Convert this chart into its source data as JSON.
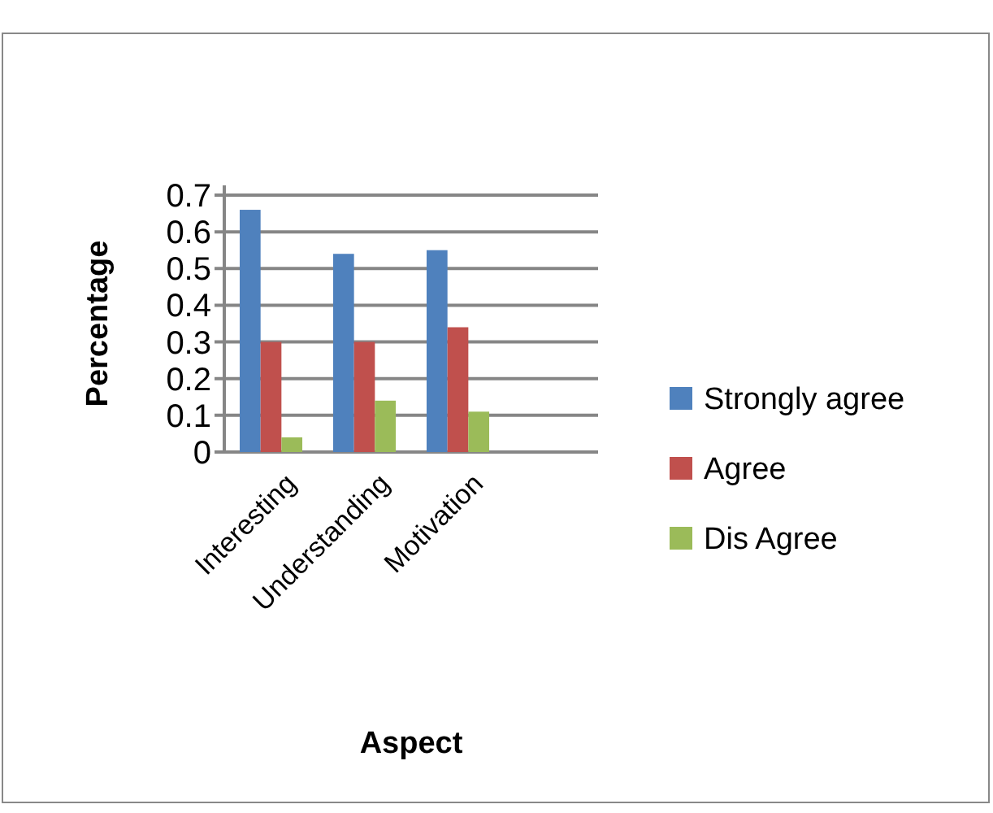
{
  "chart_data": {
    "type": "bar",
    "xlabel": "Aspect",
    "ylabel": "Percentage",
    "categories": [
      "Interesting",
      "Understanding",
      "Motivation",
      null
    ],
    "series": [
      {
        "name": "Strongly agree",
        "color": "#4f81bd",
        "values": [
          0.66,
          0.54,
          0.55,
          null
        ]
      },
      {
        "name": "Agree",
        "color": "#c0504d",
        "values": [
          0.3,
          0.3,
          0.34,
          null
        ]
      },
      {
        "name": "Dis Agree",
        "color": "#9bbb59",
        "values": [
          0.04,
          0.14,
          0.11,
          null
        ]
      }
    ],
    "ylim": [
      0,
      0.7
    ],
    "yticks": [
      0,
      0.1,
      0.2,
      0.3,
      0.4,
      0.5,
      0.6,
      0.7
    ],
    "grid": "y",
    "legend": "right"
  }
}
